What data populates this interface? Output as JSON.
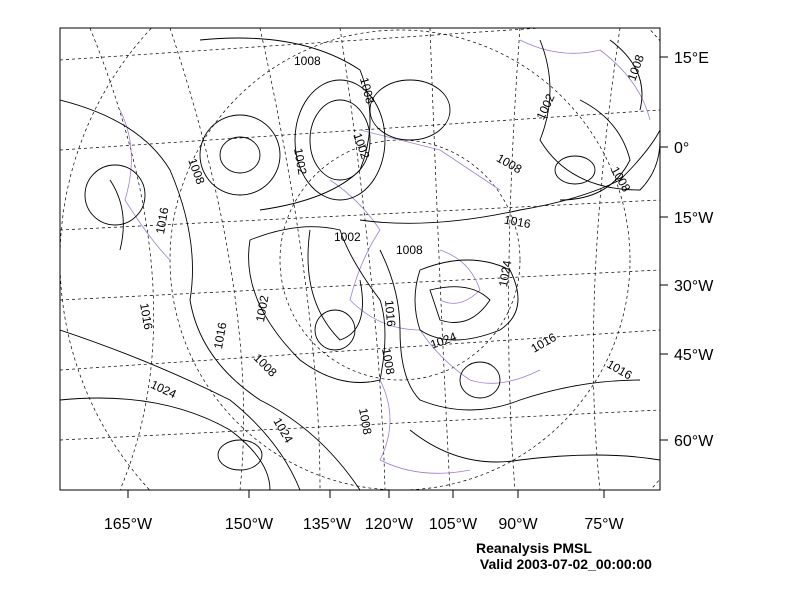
{
  "title": "Reanalysis PMSL",
  "subtitle": " Valid 2003-07-02_00:00:00",
  "colors": {
    "contour": "#000000",
    "coastline": "#a080d0",
    "grid": "#000000"
  },
  "right_axis_labels": [
    "15°E",
    "0°",
    "15°W",
    "30°W",
    "45°W",
    "60°W"
  ],
  "bottom_axis_labels": [
    "165°W",
    "150°W",
    "135°W",
    "120°W",
    "105°W",
    "90°W",
    "75°W"
  ],
  "contour_labels": [
    "1008",
    "1008",
    "1002",
    "1008",
    "1002",
    "1008",
    "1002",
    "1008",
    "1008",
    "1016",
    "1016",
    "1002",
    "1008",
    "1024",
    "1016",
    "1002",
    "1016",
    "1016",
    "1024",
    "1016",
    "1016",
    "1008",
    "1008",
    "1024",
    "1024",
    "1008"
  ]
}
